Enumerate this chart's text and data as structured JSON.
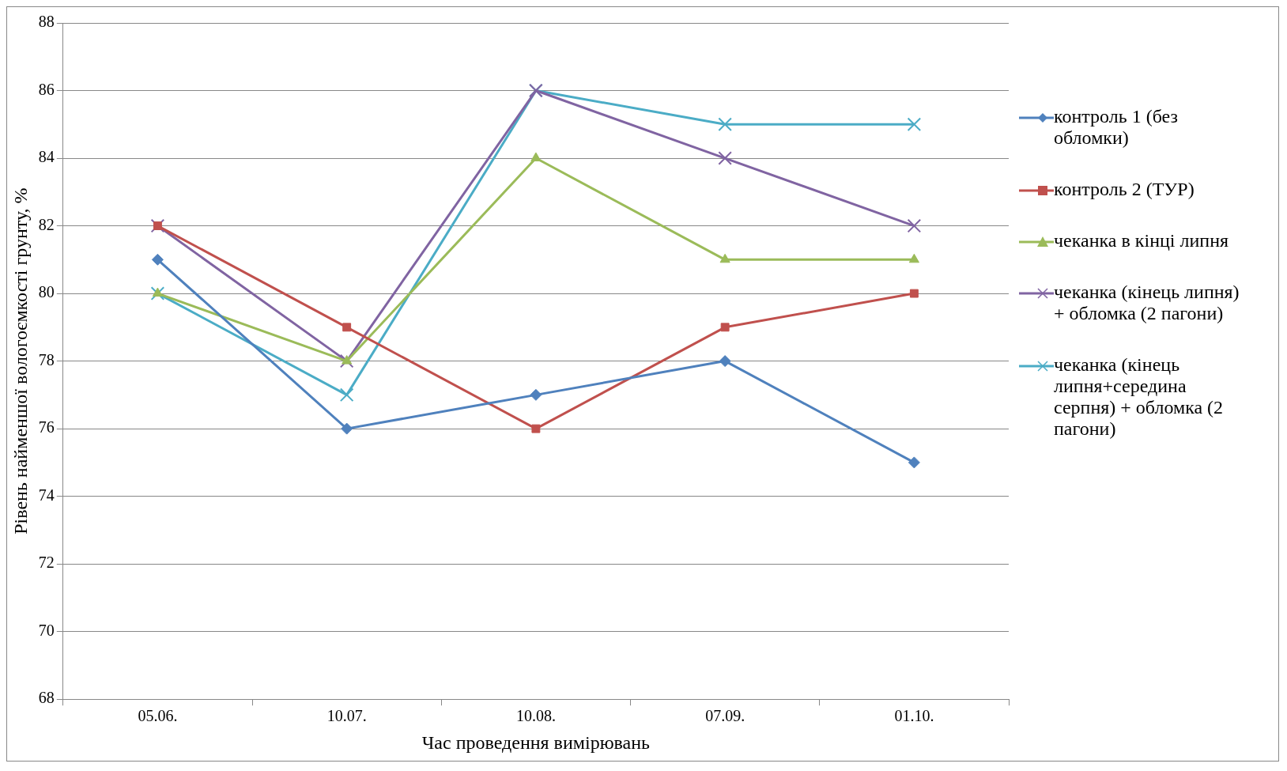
{
  "chart_data": {
    "type": "line",
    "xlabel": "Час проведення вимірювань",
    "ylabel": "Рівень найменшої вологоємкості грунту, %",
    "categories": [
      "05.06.",
      "10.07.",
      "10.08.",
      "07.09.",
      "01.10."
    ],
    "ylim": [
      68,
      88
    ],
    "yticks": [
      68,
      70,
      72,
      74,
      76,
      78,
      80,
      82,
      84,
      86,
      88
    ],
    "grid": "y",
    "legend": "right",
    "series": [
      {
        "name": "контроль 1 (без обломки)",
        "color": "#4f81bd",
        "marker": "diamond",
        "values": [
          81,
          76,
          77,
          78,
          75
        ]
      },
      {
        "name": "контроль 2 (ТУР)",
        "color": "#c0504d",
        "marker": "square",
        "values": [
          82,
          79,
          76,
          79,
          80
        ]
      },
      {
        "name": "чеканка в кінці липня",
        "color": "#9bbb59",
        "marker": "triangle",
        "values": [
          80,
          78,
          84,
          81,
          81
        ]
      },
      {
        "name": "чеканка (кінець липня) + обломка (2 пагони)",
        "color": "#8064a2",
        "marker": "cross",
        "values": [
          82,
          78,
          86,
          84,
          82
        ]
      },
      {
        "name": "чеканка (кінець липня+середина серпня) + обломка (2 пагони)",
        "color": "#4bacc6",
        "marker": "cross",
        "values": [
          80,
          77,
          86,
          85,
          85
        ]
      }
    ]
  }
}
